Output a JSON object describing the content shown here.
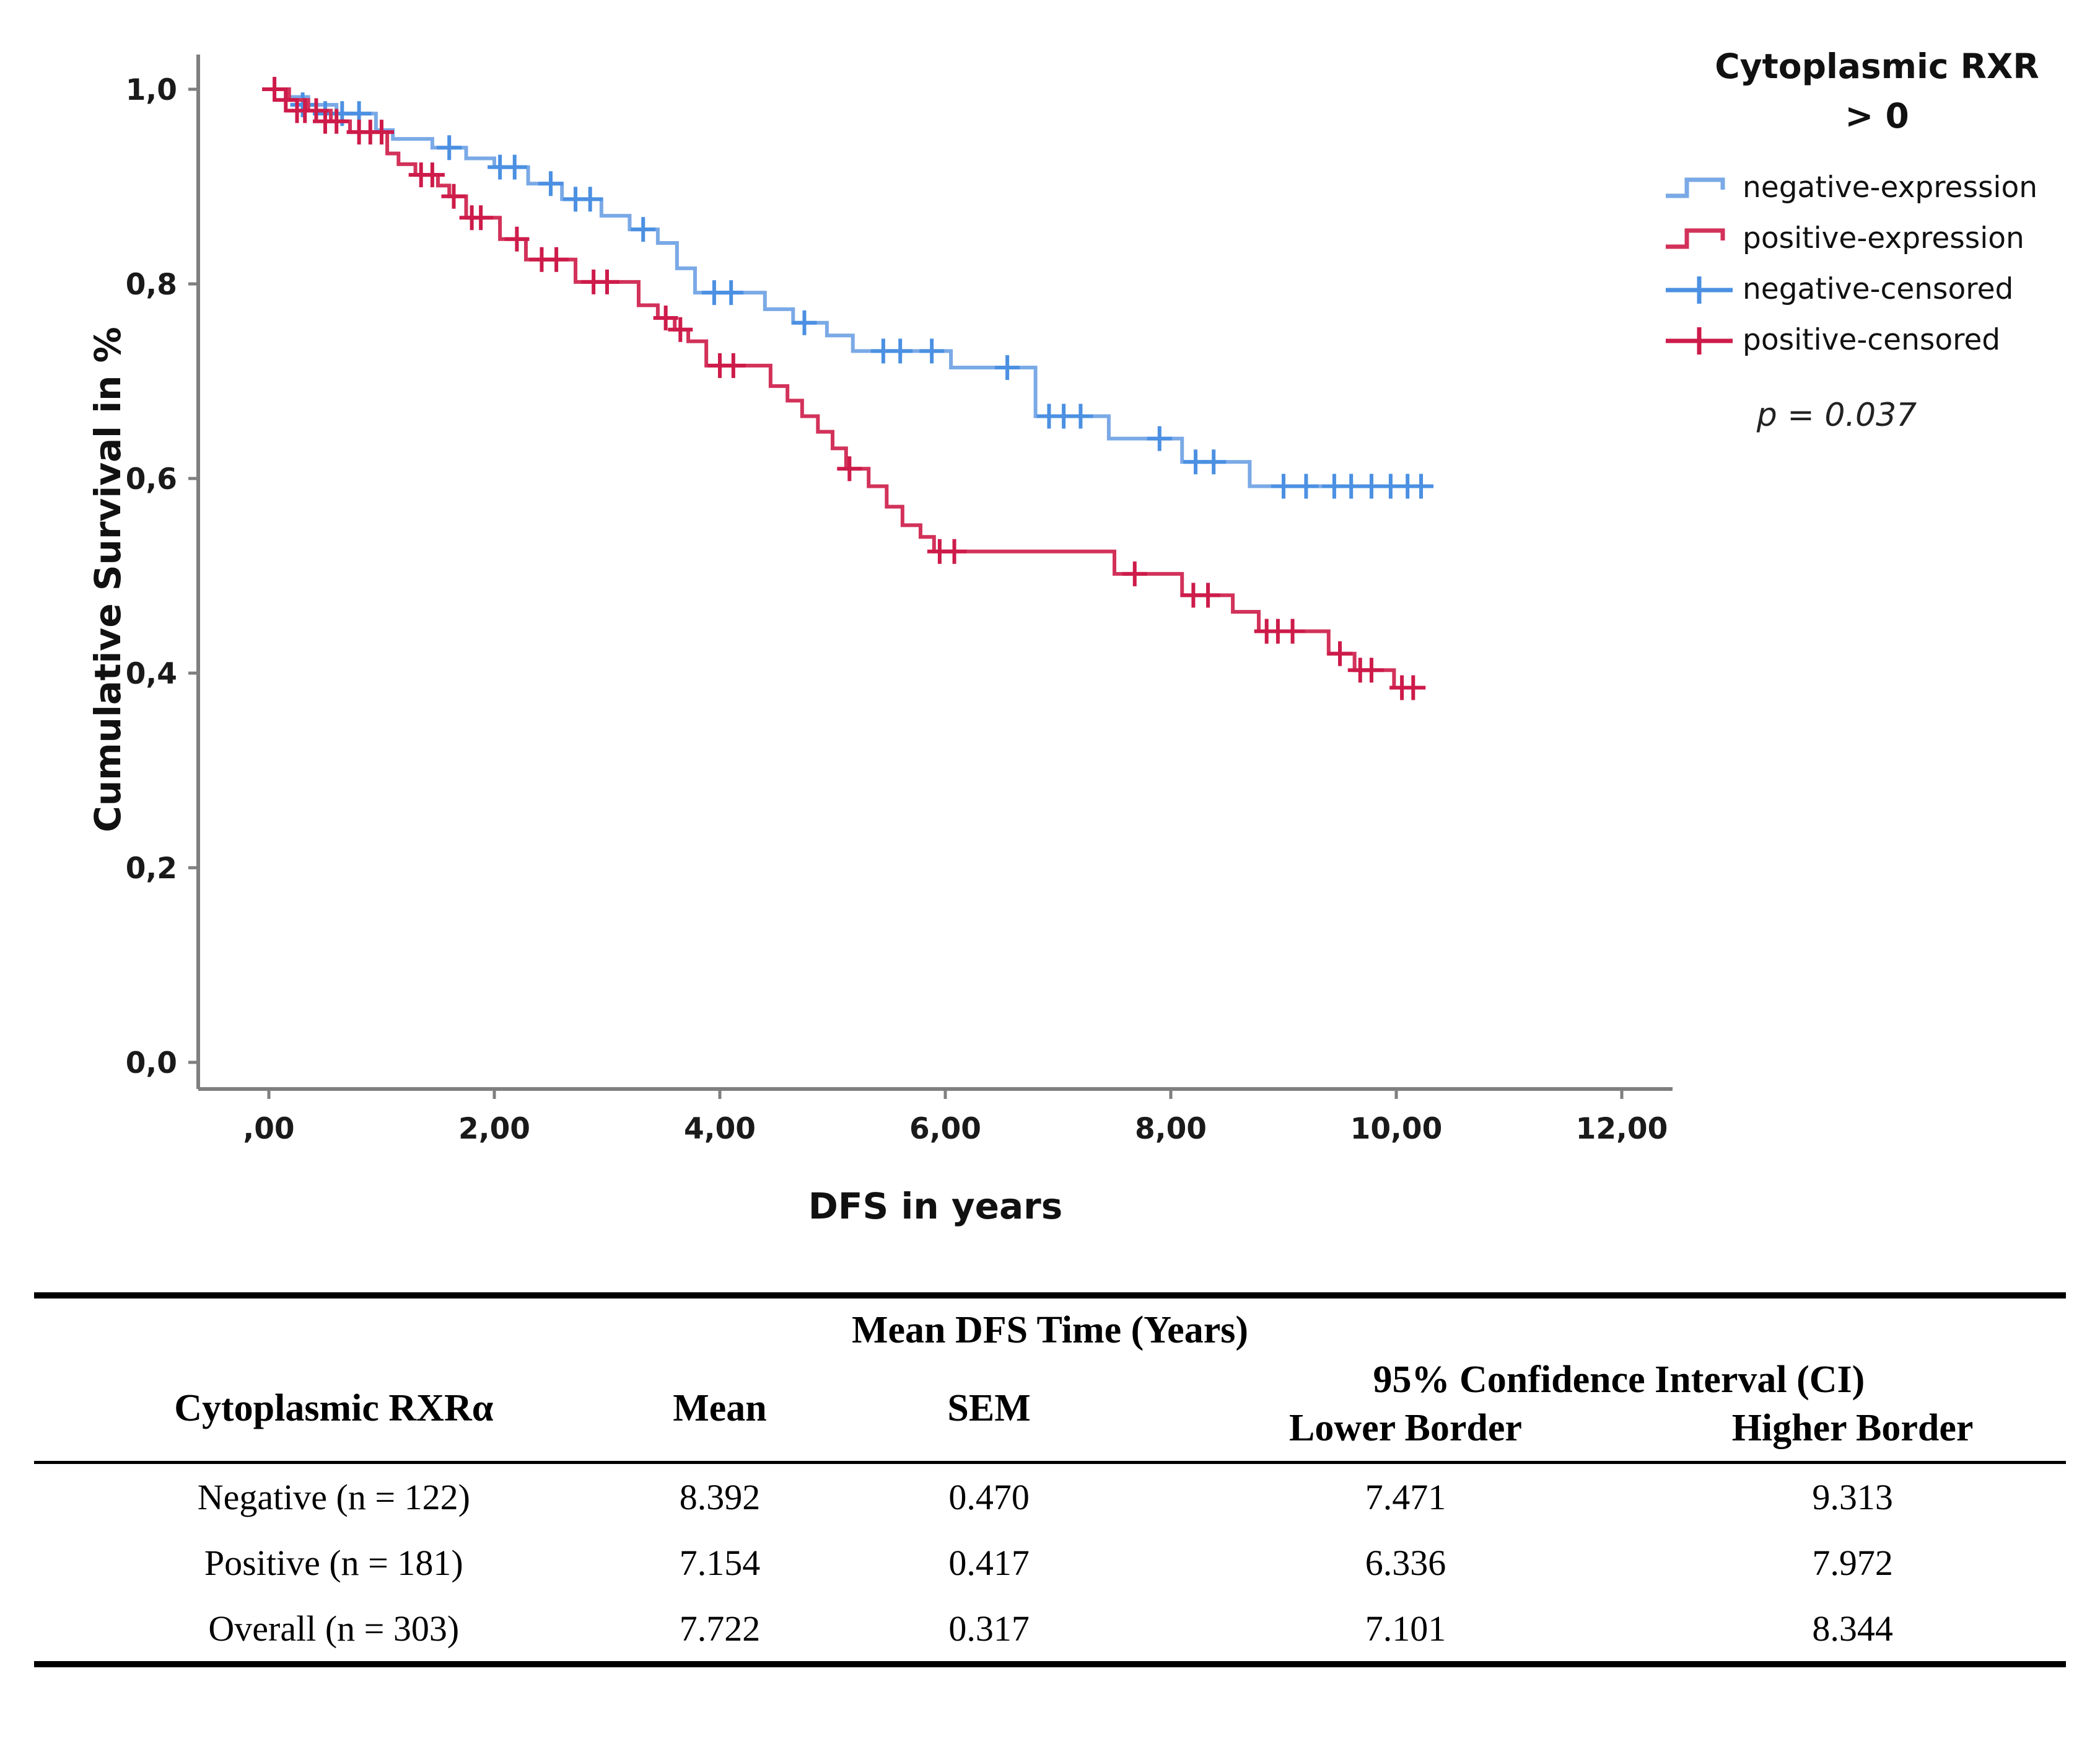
{
  "figure": {
    "y_axis_label": "Cumulative Survival in %",
    "x_axis_label": "DFS in years",
    "legend": {
      "title_line1": "Cytoplasmic RXR",
      "title_line2": "> 0",
      "items": [
        {
          "label": "negative-expression",
          "glyph": "step",
          "color": "#7aa9e6"
        },
        {
          "label": "positive-expression",
          "glyph": "step",
          "color": "#d2325a"
        },
        {
          "label": "negative-censored",
          "glyph": "plus",
          "color": "#4b90e2"
        },
        {
          "label": "positive-censored",
          "glyph": "plus",
          "color": "#cd1b4a"
        }
      ],
      "p_value": "p = 0.037"
    }
  },
  "chart_data": {
    "type": "line",
    "subtype": "kaplan-meier-step",
    "title": "",
    "xlabel": "DFS in years",
    "ylabel": "Cumulative Survival in %",
    "xlim": [
      0,
      12.6
    ],
    "ylim": [
      0,
      1.04
    ],
    "grid": false,
    "legend_position": "right",
    "p_value": 0.037,
    "x_ticks": {
      "values": [
        0,
        2,
        4,
        6,
        8,
        10,
        12
      ],
      "labels": [
        ",00",
        "2,00",
        "4,00",
        "6,00",
        "8,00",
        "10,00",
        "12,00"
      ]
    },
    "y_ticks": {
      "values": [
        0,
        0.2,
        0.4,
        0.6,
        0.8,
        1.0
      ],
      "labels": [
        "0,0",
        "0,2",
        "0,4",
        "0,6",
        "0,8",
        "1,0"
      ]
    },
    "series": [
      {
        "name": "negative-expression",
        "n": 122,
        "line_color": "#7aa9e6",
        "censor_color": "#4b90e2",
        "end_time": 10.25,
        "steps": [
          [
            0,
            1.0
          ],
          [
            0.15,
            0.992
          ],
          [
            0.35,
            0.984
          ],
          [
            0.6,
            0.975
          ],
          [
            0.95,
            0.958
          ],
          [
            1.1,
            0.949
          ],
          [
            1.45,
            0.94
          ],
          [
            1.75,
            0.929
          ],
          [
            2.0,
            0.92
          ],
          [
            2.3,
            0.903
          ],
          [
            2.6,
            0.887
          ],
          [
            2.95,
            0.87
          ],
          [
            3.2,
            0.856
          ],
          [
            3.45,
            0.842
          ],
          [
            3.62,
            0.816
          ],
          [
            3.78,
            0.791
          ],
          [
            4.4,
            0.774
          ],
          [
            4.65,
            0.76
          ],
          [
            4.95,
            0.747
          ],
          [
            5.18,
            0.731
          ],
          [
            6.05,
            0.714
          ],
          [
            6.8,
            0.664
          ],
          [
            7.45,
            0.641
          ],
          [
            8.1,
            0.617
          ],
          [
            8.7,
            0.592
          ]
        ],
        "censors": [
          [
            0.3,
            0.984
          ],
          [
            0.5,
            0.975
          ],
          [
            0.65,
            0.975
          ],
          [
            0.8,
            0.975
          ],
          [
            1.6,
            0.94
          ],
          [
            2.05,
            0.92
          ],
          [
            2.18,
            0.92
          ],
          [
            2.5,
            0.903
          ],
          [
            2.72,
            0.887
          ],
          [
            2.85,
            0.887
          ],
          [
            3.32,
            0.856
          ],
          [
            3.95,
            0.791
          ],
          [
            4.1,
            0.791
          ],
          [
            4.75,
            0.76
          ],
          [
            5.45,
            0.731
          ],
          [
            5.6,
            0.731
          ],
          [
            5.88,
            0.731
          ],
          [
            6.55,
            0.714
          ],
          [
            6.92,
            0.664
          ],
          [
            7.05,
            0.664
          ],
          [
            7.2,
            0.664
          ],
          [
            7.9,
            0.641
          ],
          [
            8.22,
            0.617
          ],
          [
            8.38,
            0.617
          ],
          [
            9.0,
            0.592
          ],
          [
            9.2,
            0.592
          ],
          [
            9.45,
            0.592
          ],
          [
            9.6,
            0.592
          ],
          [
            9.78,
            0.592
          ],
          [
            9.95,
            0.592
          ],
          [
            10.1,
            0.592
          ],
          [
            10.22,
            0.592
          ]
        ]
      },
      {
        "name": "positive-expression",
        "n": 181,
        "line_color": "#d2325a",
        "censor_color": "#cd1b4a",
        "end_time": 10.18,
        "steps": [
          [
            0,
            1.0
          ],
          [
            0.18,
            0.989
          ],
          [
            0.35,
            0.978
          ],
          [
            0.55,
            0.967
          ],
          [
            0.72,
            0.956
          ],
          [
            1.05,
            0.934
          ],
          [
            1.15,
            0.923
          ],
          [
            1.3,
            0.912
          ],
          [
            1.5,
            0.901
          ],
          [
            1.6,
            0.89
          ],
          [
            1.75,
            0.868
          ],
          [
            2.05,
            0.846
          ],
          [
            2.28,
            0.825
          ],
          [
            2.72,
            0.802
          ],
          [
            3.28,
            0.778
          ],
          [
            3.45,
            0.765
          ],
          [
            3.6,
            0.753
          ],
          [
            3.72,
            0.741
          ],
          [
            3.88,
            0.716
          ],
          [
            4.45,
            0.695
          ],
          [
            4.6,
            0.68
          ],
          [
            4.73,
            0.664
          ],
          [
            4.87,
            0.648
          ],
          [
            5.0,
            0.631
          ],
          [
            5.12,
            0.61
          ],
          [
            5.32,
            0.592
          ],
          [
            5.48,
            0.571
          ],
          [
            5.62,
            0.552
          ],
          [
            5.78,
            0.54
          ],
          [
            5.9,
            0.525
          ],
          [
            7.5,
            0.502
          ],
          [
            8.1,
            0.48
          ],
          [
            8.55,
            0.463
          ],
          [
            8.78,
            0.443
          ],
          [
            9.4,
            0.42
          ],
          [
            9.63,
            0.403
          ],
          [
            9.98,
            0.385
          ]
        ],
        "censors": [
          [
            0.05,
            1.0
          ],
          [
            0.15,
            0.989
          ],
          [
            0.25,
            0.978
          ],
          [
            0.32,
            0.978
          ],
          [
            0.42,
            0.978
          ],
          [
            0.5,
            0.967
          ],
          [
            0.6,
            0.967
          ],
          [
            0.8,
            0.956
          ],
          [
            0.9,
            0.956
          ],
          [
            1.0,
            0.956
          ],
          [
            1.35,
            0.912
          ],
          [
            1.45,
            0.912
          ],
          [
            1.64,
            0.89
          ],
          [
            1.8,
            0.868
          ],
          [
            1.88,
            0.868
          ],
          [
            2.2,
            0.846
          ],
          [
            2.42,
            0.825
          ],
          [
            2.55,
            0.825
          ],
          [
            2.88,
            0.802
          ],
          [
            3.0,
            0.802
          ],
          [
            3.52,
            0.765
          ],
          [
            3.65,
            0.753
          ],
          [
            4.0,
            0.716
          ],
          [
            4.12,
            0.716
          ],
          [
            5.15,
            0.61
          ],
          [
            5.95,
            0.525
          ],
          [
            6.08,
            0.525
          ],
          [
            7.68,
            0.502
          ],
          [
            8.2,
            0.48
          ],
          [
            8.33,
            0.48
          ],
          [
            8.85,
            0.443
          ],
          [
            8.95,
            0.443
          ],
          [
            9.08,
            0.443
          ],
          [
            9.5,
            0.42
          ],
          [
            9.68,
            0.403
          ],
          [
            9.78,
            0.403
          ],
          [
            10.05,
            0.385
          ],
          [
            10.15,
            0.385
          ]
        ]
      }
    ]
  },
  "table": {
    "title": "Mean DFS Time (Years)",
    "headers": {
      "group": "Cytoplasmic RXRα",
      "mean": "Mean",
      "sem": "SEM",
      "ci": "95% Confidence Interval (CI)",
      "ci_lower": "Lower Border",
      "ci_higher": "Higher Border"
    },
    "rows": [
      {
        "group": "Negative (n = 122)",
        "mean": "8.392",
        "sem": "0.470",
        "lower": "7.471",
        "higher": "9.313"
      },
      {
        "group": "Positive (n = 181)",
        "mean": "7.154",
        "sem": "0.417",
        "lower": "6.336",
        "higher": "7.972"
      },
      {
        "group": "Overall (n = 303)",
        "mean": "7.722",
        "sem": "0.317",
        "lower": "7.101",
        "higher": "8.344"
      }
    ]
  }
}
